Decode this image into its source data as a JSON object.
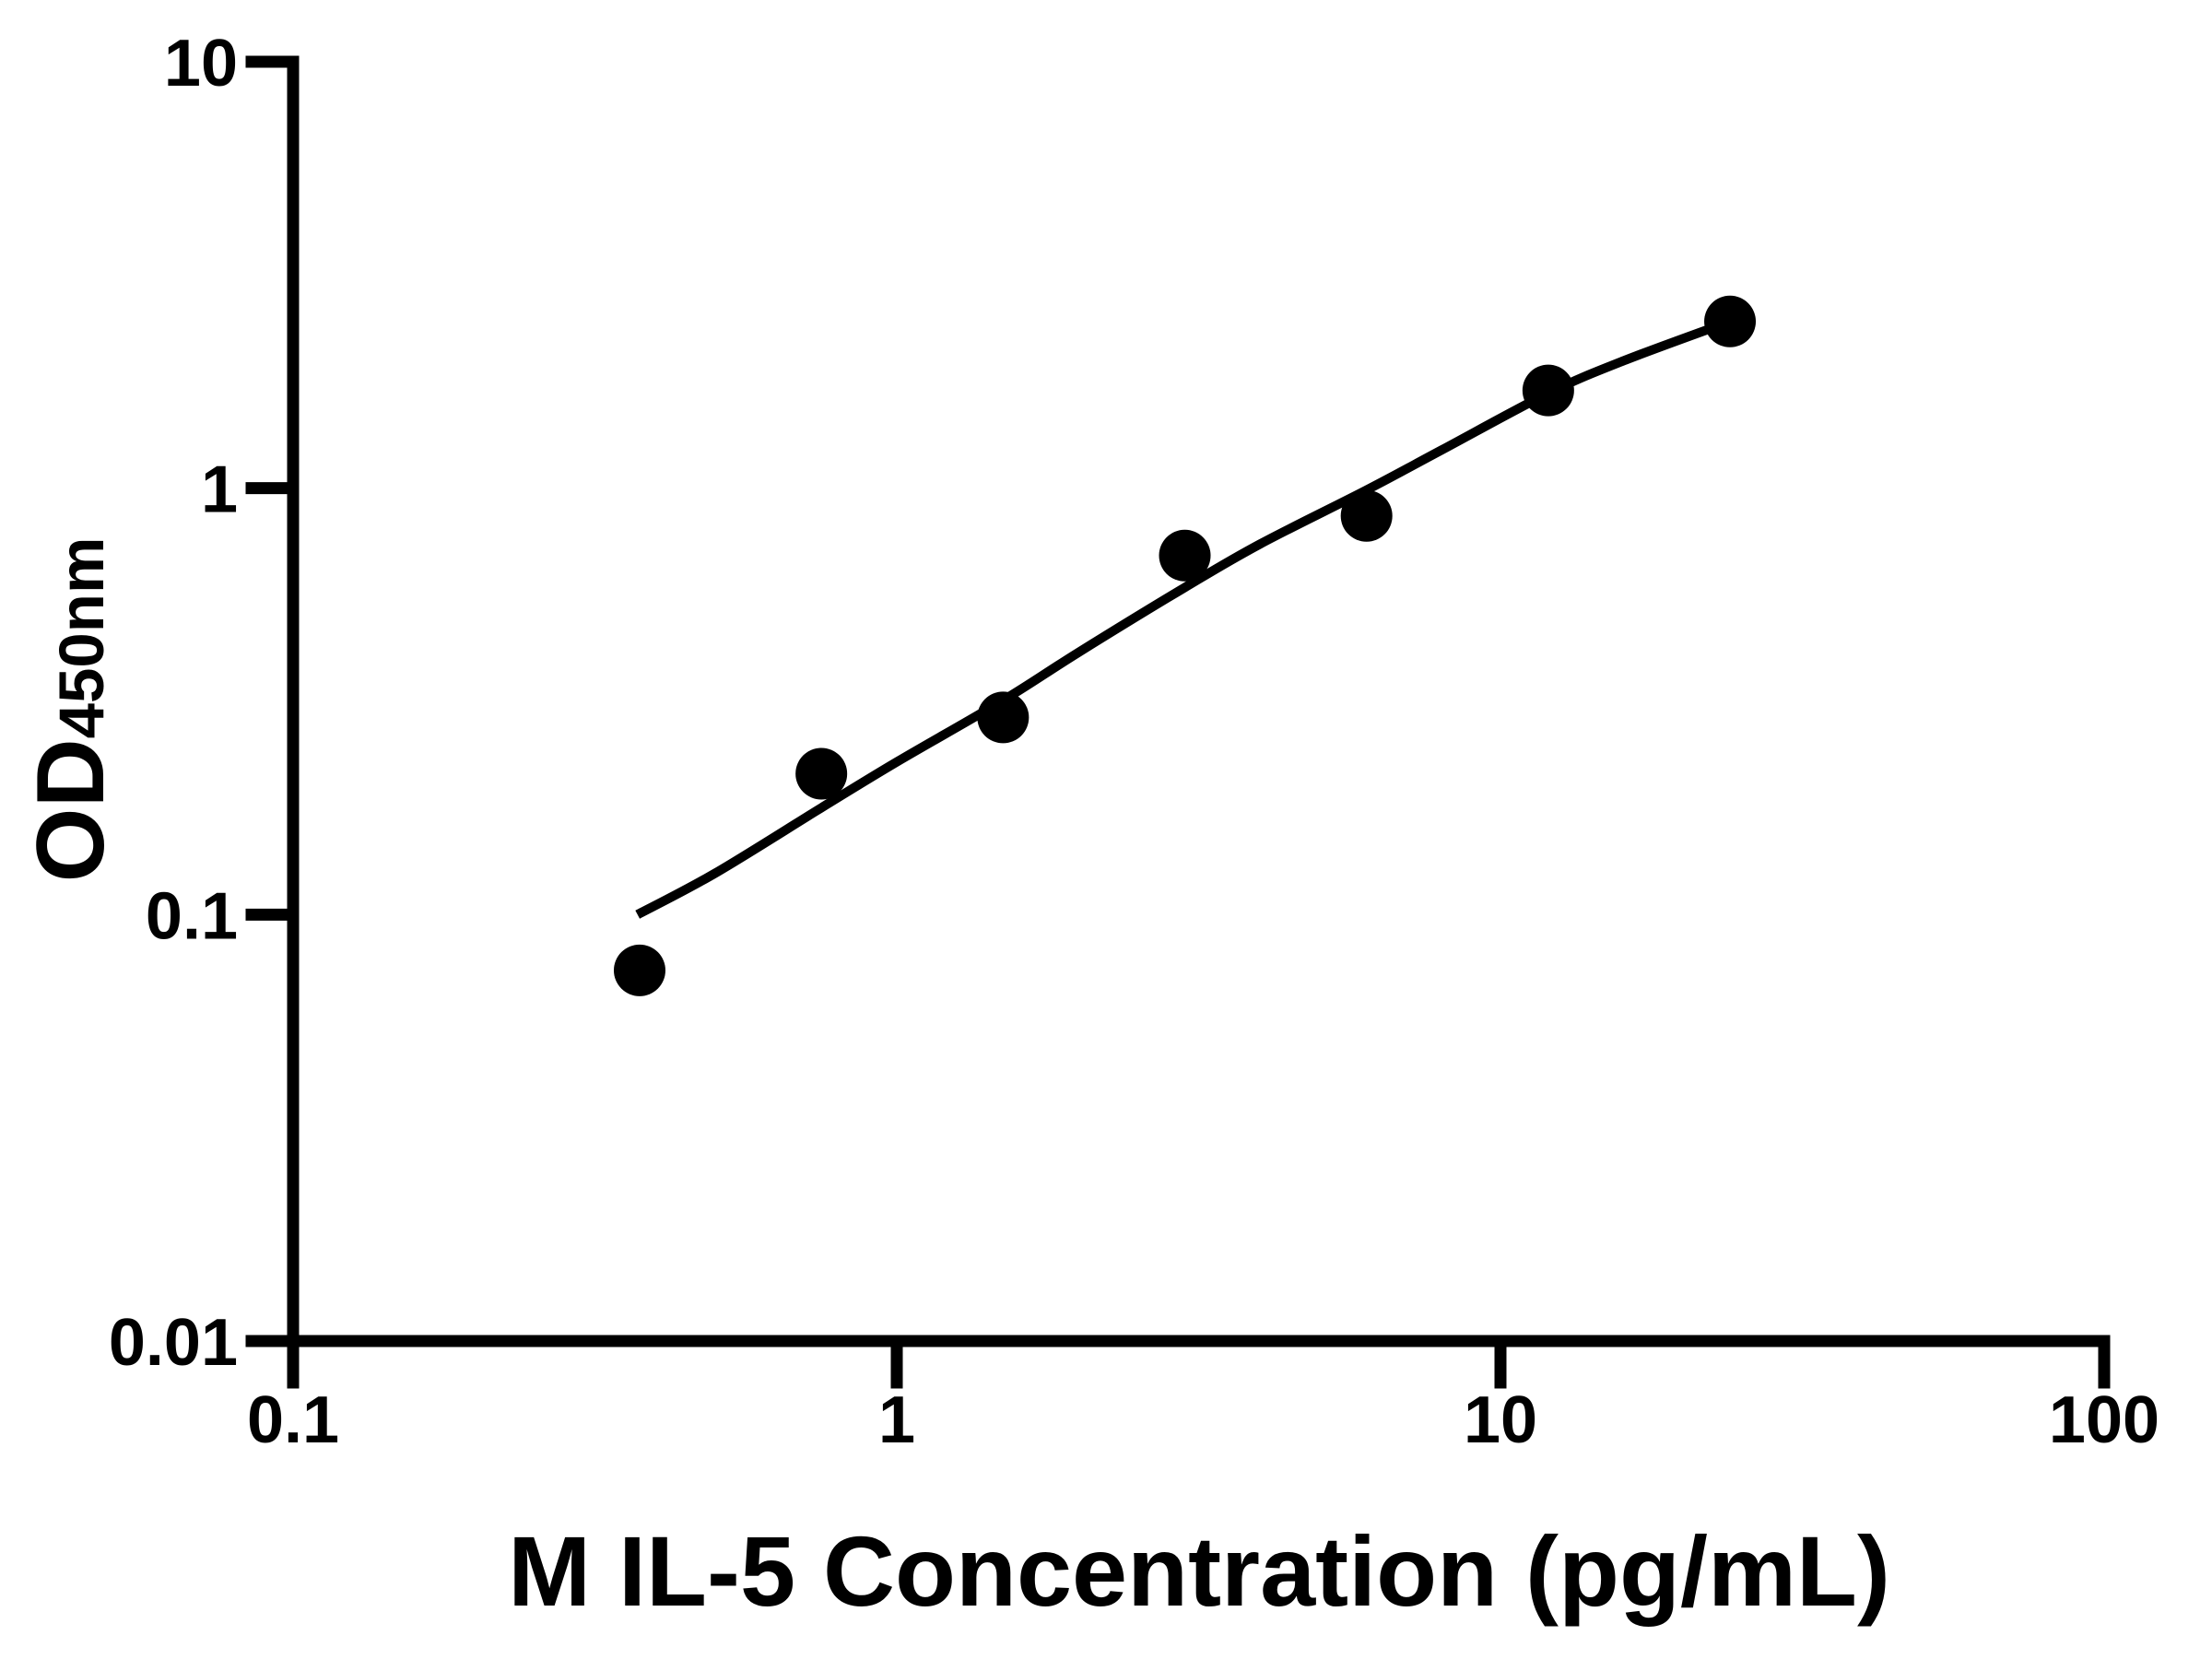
{
  "figure": {
    "background_color": "#ffffff",
    "ink_color": "#000000"
  },
  "chart_data": {
    "type": "scatter",
    "title": "",
    "xlabel": "M IL-5 Concentration (pg/mL)",
    "ylabel": {
      "main": "OD",
      "sub": "450nm",
      "full": "OD450nm"
    },
    "x_scale": "log10",
    "y_scale": "log10",
    "xlim": [
      0.1,
      100
    ],
    "ylim": [
      0.01,
      10
    ],
    "grid": false,
    "legend": null,
    "x_ticks": [
      {
        "value": 0.1,
        "label": "0.1"
      },
      {
        "value": 1,
        "label": "1"
      },
      {
        "value": 10,
        "label": "10"
      },
      {
        "value": 100,
        "label": "100"
      }
    ],
    "y_ticks": [
      {
        "value": 0.01,
        "label": "0.01"
      },
      {
        "value": 0.1,
        "label": "0.1"
      },
      {
        "value": 1,
        "label": "1"
      },
      {
        "value": 10,
        "label": "10"
      }
    ],
    "series": [
      {
        "name": "standard-points",
        "type": "scatter",
        "marker": "circle",
        "color": "#000000",
        "points": [
          [
            0.375,
            0.074
          ],
          [
            0.75,
            0.214
          ],
          [
            1.5,
            0.29
          ],
          [
            3,
            0.695
          ],
          [
            6,
            0.861
          ],
          [
            12,
            1.695
          ],
          [
            24,
            2.46
          ]
        ]
      },
      {
        "name": "fit-curve",
        "type": "line",
        "color": "#000000",
        "points": [
          [
            0.372,
            0.1
          ],
          [
            0.5,
            0.125
          ],
          [
            0.75,
            0.178
          ],
          [
            1,
            0.228
          ],
          [
            1.5,
            0.318
          ],
          [
            2,
            0.412
          ],
          [
            3,
            0.585
          ],
          [
            4,
            0.74
          ],
          [
            6,
            0.99
          ],
          [
            8,
            1.23
          ],
          [
            12,
            1.67
          ],
          [
            16,
            1.99
          ],
          [
            24,
            2.46
          ]
        ]
      }
    ]
  }
}
